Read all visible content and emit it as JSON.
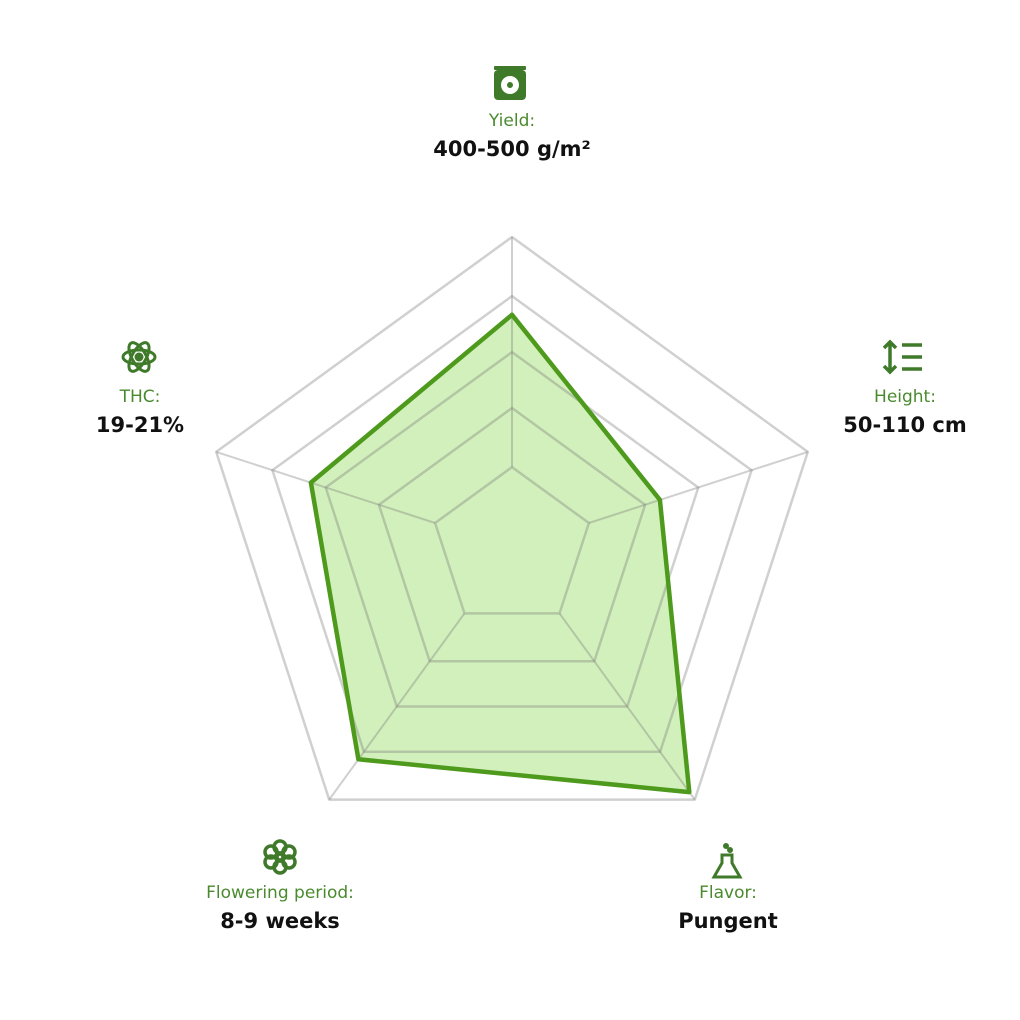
{
  "chart_data": {
    "type": "radar",
    "categories": [
      "Yield:",
      "Height:",
      "Flavor:",
      "Flowering period:",
      "THC:"
    ],
    "value_labels": [
      "400-500 g/m²",
      "50-110 cm",
      "Pungent",
      "8-9 weeks",
      "19-21%"
    ],
    "values": [
      3.75,
      2.5,
      4.85,
      4.2,
      3.4
    ],
    "ylim": [
      0,
      5
    ],
    "yticks": [
      1.3,
      2.25,
      3.15,
      4.05,
      5
    ],
    "color": "#4e9a1c",
    "fill": "#d2f0bc",
    "grid": true
  }
}
